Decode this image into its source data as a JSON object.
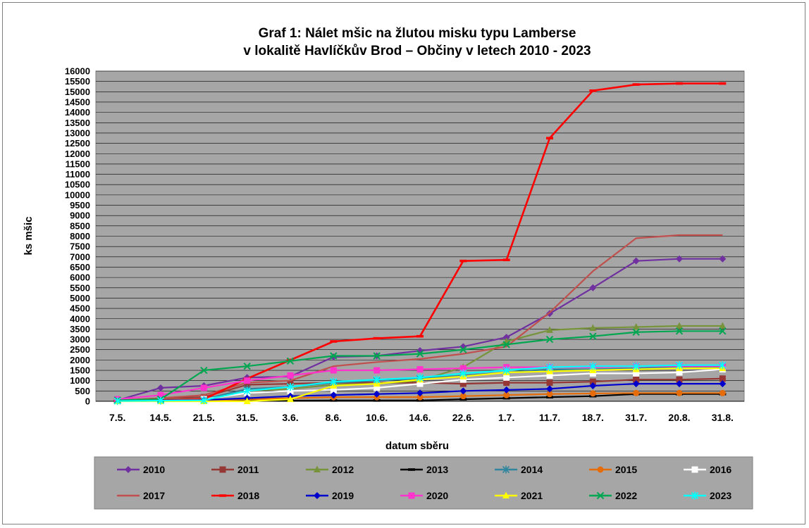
{
  "chart_data": {
    "type": "line",
    "title_line1": "Graf 1: Nálet mšic na žlutou misku typu Lamberse",
    "title_line2": "v lokalitě Havlíčkův Brod – Občiny v letech 2010 - 2023",
    "xlabel": "datum sběru",
    "ylabel": "ks mšic",
    "ylim": [
      0,
      16000
    ],
    "ystep": 500,
    "grid": true,
    "legend_position": "bottom",
    "categories": [
      "7.5.",
      "14.5.",
      "21.5.",
      "31.5.",
      "3.6.",
      "8.6.",
      "10.6.",
      "14.6.",
      "22.6.",
      "1.7.",
      "11.7.",
      "18.7.",
      "31.7.",
      "20.8.",
      "31.8."
    ],
    "series": [
      {
        "name": "2010",
        "color": "#7030a0",
        "marker": "diamond",
        "values": [
          50,
          650,
          750,
          1150,
          1200,
          2150,
          2200,
          2450,
          2650,
          3100,
          4250,
          5500,
          6800,
          6900,
          6900
        ]
      },
      {
        "name": "2011",
        "color": "#953735",
        "marker": "square",
        "values": [
          40,
          150,
          200,
          800,
          850,
          900,
          900,
          900,
          850,
          900,
          900,
          950,
          1050,
          1050,
          1100
        ]
      },
      {
        "name": "2012",
        "color": "#77933c",
        "marker": "triangle",
        "values": [
          30,
          80,
          100,
          500,
          600,
          800,
          850,
          1000,
          1650,
          2900,
          3450,
          3550,
          3600,
          3650,
          3650
        ]
      },
      {
        "name": "2013",
        "color": "#000000",
        "marker": "dash",
        "values": [
          10,
          20,
          20,
          30,
          30,
          40,
          40,
          40,
          100,
          150,
          200,
          250,
          350,
          350,
          350
        ]
      },
      {
        "name": "2014",
        "color": "#31859c",
        "marker": "star",
        "values": [
          20,
          50,
          100,
          600,
          700,
          900,
          1000,
          1100,
          1250,
          1400,
          1550,
          1550,
          1600,
          1650,
          1650
        ]
      },
      {
        "name": "2015",
        "color": "#e46c0a",
        "marker": "circle",
        "values": [
          10,
          30,
          50,
          100,
          150,
          200,
          200,
          200,
          250,
          300,
          350,
          380,
          400,
          400,
          400
        ]
      },
      {
        "name": "2016",
        "color": "#ffffff",
        "marker": "square-white",
        "values": [
          20,
          50,
          100,
          400,
          500,
          550,
          650,
          850,
          1050,
          1150,
          1250,
          1350,
          1350,
          1400,
          1550
        ]
      },
      {
        "name": "2017",
        "color": "#c0504d",
        "marker": "none",
        "values": [
          30,
          150,
          300,
          900,
          1000,
          1700,
          1900,
          2050,
          2300,
          2650,
          4300,
          6300,
          7900,
          8050,
          8050
        ]
      },
      {
        "name": "2018",
        "color": "#ff0000",
        "marker": "dash",
        "values": [
          20,
          50,
          100,
          1100,
          2000,
          2900,
          3050,
          3150,
          6800,
          6850,
          12750,
          15050,
          15350,
          15400,
          15400
        ]
      },
      {
        "name": "2019",
        "color": "#0000cc",
        "marker": "diamond",
        "values": [
          20,
          40,
          60,
          150,
          250,
          300,
          350,
          400,
          500,
          550,
          600,
          750,
          850,
          850,
          850
        ]
      },
      {
        "name": "2020",
        "color": "#ff33cc",
        "marker": "square",
        "values": [
          100,
          300,
          650,
          1000,
          1250,
          1500,
          1500,
          1550,
          1600,
          1650,
          1650,
          1650,
          1700,
          1700,
          1700
        ]
      },
      {
        "name": "2021",
        "color": "#ffff00",
        "marker": "triangle",
        "values": [
          0,
          0,
          0,
          0,
          100,
          750,
          850,
          1050,
          1200,
          1400,
          1450,
          1500,
          1550,
          1600,
          1600
        ]
      },
      {
        "name": "2022",
        "color": "#00a650",
        "marker": "x",
        "values": [
          50,
          100,
          1500,
          1700,
          1950,
          2200,
          2200,
          2300,
          2500,
          2750,
          3000,
          3150,
          3350,
          3400,
          3400
        ]
      },
      {
        "name": "2023",
        "color": "#00ffff",
        "marker": "star",
        "values": [
          10,
          30,
          50,
          500,
          700,
          950,
          1050,
          1150,
          1350,
          1500,
          1650,
          1700,
          1700,
          1750,
          1750
        ]
      }
    ]
  }
}
